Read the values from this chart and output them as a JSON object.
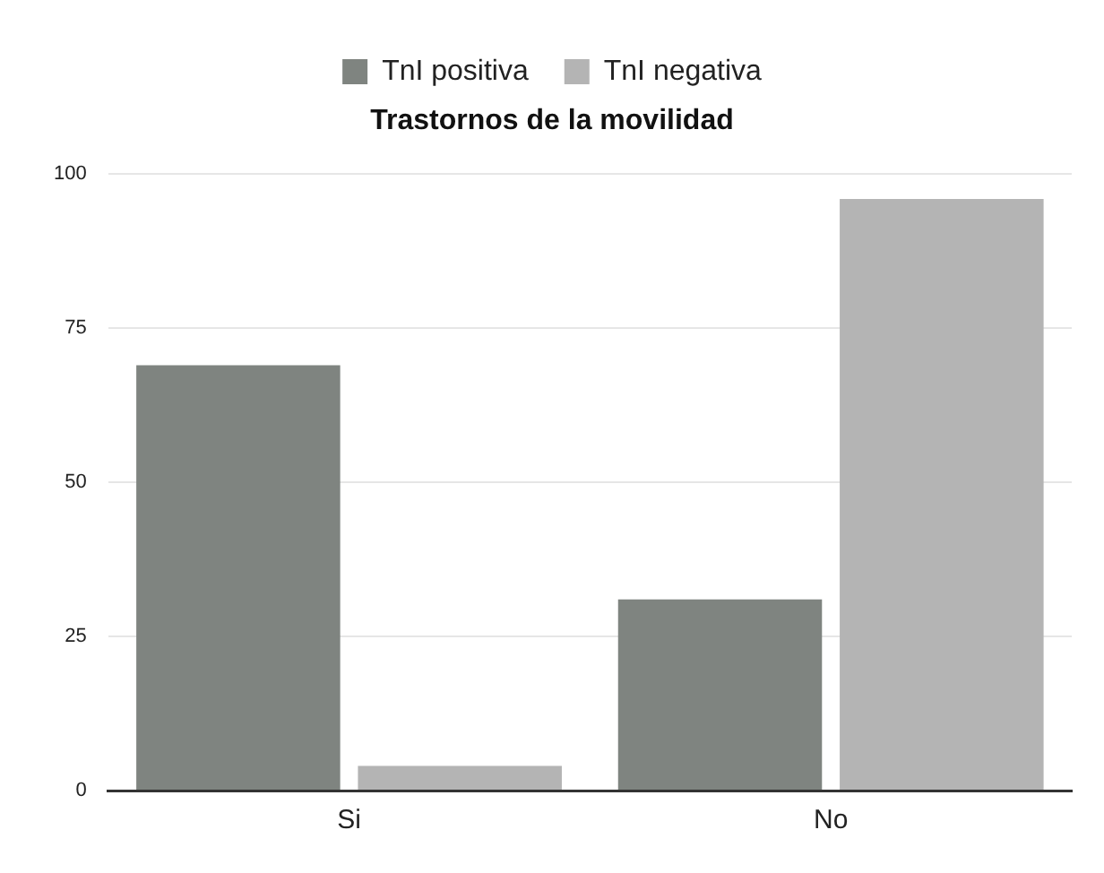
{
  "chart_data": {
    "type": "bar",
    "title": "Trastornos de la movilidad",
    "categories": [
      "Si",
      "No"
    ],
    "series": [
      {
        "name": "TnI positiva",
        "color": "#7f8480",
        "values": [
          69,
          31
        ]
      },
      {
        "name": "TnI negativa",
        "color": "#b4b4b4",
        "values": [
          4,
          96
        ]
      }
    ],
    "ylim": [
      0,
      100
    ],
    "yticks": [
      0,
      25,
      50,
      75,
      100
    ],
    "grid": "y",
    "legend": "top"
  }
}
